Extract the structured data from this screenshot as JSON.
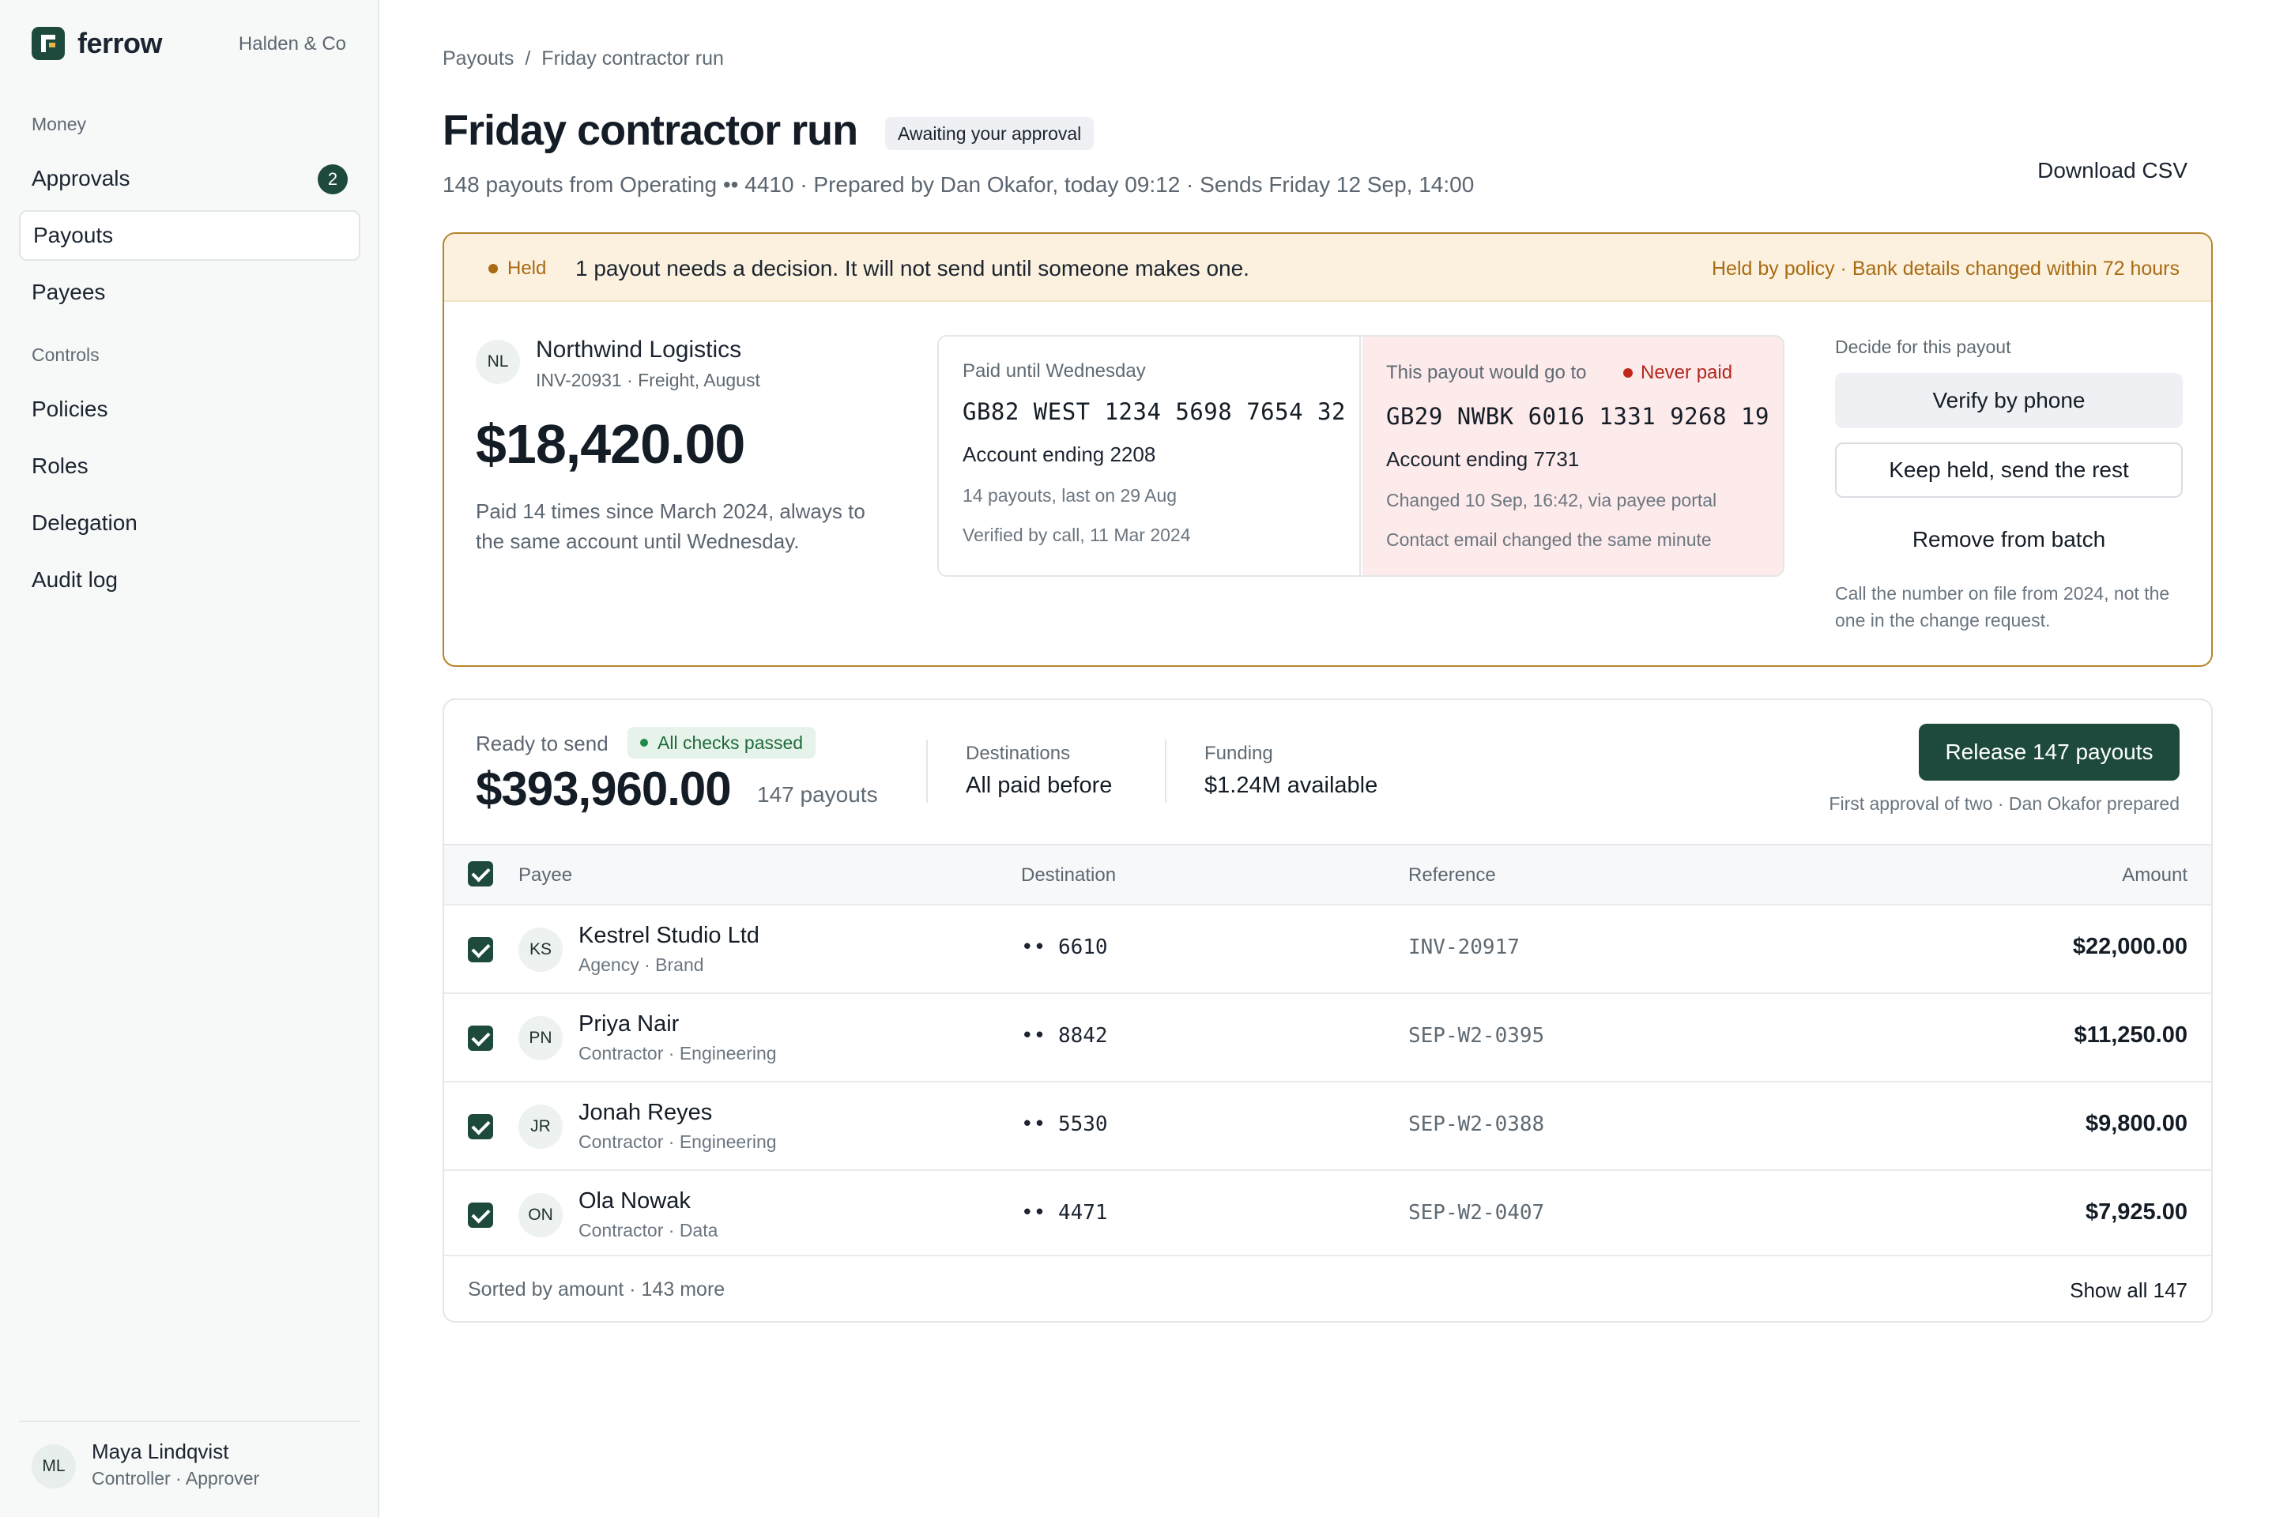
{
  "sidebar": {
    "brand": "ferrow",
    "org": "Halden & Co",
    "sections": {
      "money": "Money",
      "controls": "Controls"
    },
    "items": {
      "approvals": {
        "label": "Approvals",
        "badge": "2"
      },
      "payouts": {
        "label": "Payouts"
      },
      "payees": {
        "label": "Payees"
      },
      "policies": {
        "label": "Policies"
      },
      "roles": {
        "label": "Roles"
      },
      "delegation": {
        "label": "Delegation"
      },
      "audit": {
        "label": "Audit log"
      }
    },
    "user": {
      "initials": "ML",
      "name": "Maya Lindqvist",
      "role": "Controller · Approver"
    }
  },
  "header": {
    "breadcrumb": [
      "Payouts",
      "/",
      "Friday contractor run"
    ],
    "title": "Friday contractor run",
    "status": "Awaiting your approval",
    "subtitle": "148 payouts from Operating •• 4410 · Prepared by Dan Okafor, today 09:12 · Sends Friday 12 Sep, 14:00",
    "download": "Download CSV"
  },
  "held": {
    "tag": "Held",
    "message": "1 payout needs a decision. It will not send until someone makes one.",
    "reason": "Held by policy · Bank details changed within 72 hours",
    "payee": {
      "initials": "NL",
      "name": "Northwind Logistics",
      "sub": "INV-20931 · Freight, August",
      "amount": "$18,420.00",
      "note": "Paid 14 times since March 2024, always to the same account until Wednesday."
    },
    "old": {
      "label": "Paid until Wednesday",
      "iban": "GB82 WEST 1234 5698 7654 32",
      "account": "Account ending 2208",
      "line1": "14 payouts, last on 29 Aug",
      "line2": "Verified by call, 11 Mar 2024"
    },
    "new": {
      "label": "This payout would go to",
      "flag": "Never paid",
      "iban": "GB29 NWBK 6016 1331 9268 19",
      "account": "Account ending 7731",
      "line1": "Changed 10 Sep, 16:42, via payee portal",
      "line2": "Contact email changed the same minute"
    },
    "decide": {
      "label": "Decide for this payout",
      "verify": "Verify by phone",
      "keep": "Keep held, send the rest",
      "remove": "Remove from batch",
      "note": "Call the number on file from 2024, not the one in the change request."
    }
  },
  "ready": {
    "label": "Ready to send",
    "checks": "All checks passed",
    "amount": "$393,960.00",
    "count": "147 payouts",
    "destinations": {
      "label": "Destinations",
      "value": "All paid before"
    },
    "funding": {
      "label": "Funding",
      "value": "$1.24M available"
    },
    "release": "Release 147 payouts",
    "release_note": "First approval of two · Dan Okafor prepared"
  },
  "table": {
    "columns": {
      "payee": "Payee",
      "destination": "Destination",
      "reference": "Reference",
      "amount": "Amount"
    },
    "rows": [
      {
        "initials": "KS",
        "name": "Kestrel Studio Ltd",
        "sub": "Agency · Brand",
        "dest": "•• 6610",
        "ref": "INV-20917",
        "amount": "$22,000.00"
      },
      {
        "initials": "PN",
        "name": "Priya Nair",
        "sub": "Contractor · Engineering",
        "dest": "•• 8842",
        "ref": "SEP-W2-0395",
        "amount": "$11,250.00"
      },
      {
        "initials": "JR",
        "name": "Jonah Reyes",
        "sub": "Contractor · Engineering",
        "dest": "•• 5530",
        "ref": "SEP-W2-0388",
        "amount": "$9,800.00"
      },
      {
        "initials": "ON",
        "name": "Ola Nowak",
        "sub": "Contractor · Data",
        "dest": "•• 4471",
        "ref": "SEP-W2-0407",
        "amount": "$7,925.00"
      }
    ],
    "footer_left": "Sorted by amount · 143 more",
    "footer_right": "Show all 147"
  },
  "colors": {
    "accent": "#1d4a3c",
    "held": "#a86a12",
    "danger": "#b3261e",
    "success": "#1f6b3a"
  }
}
